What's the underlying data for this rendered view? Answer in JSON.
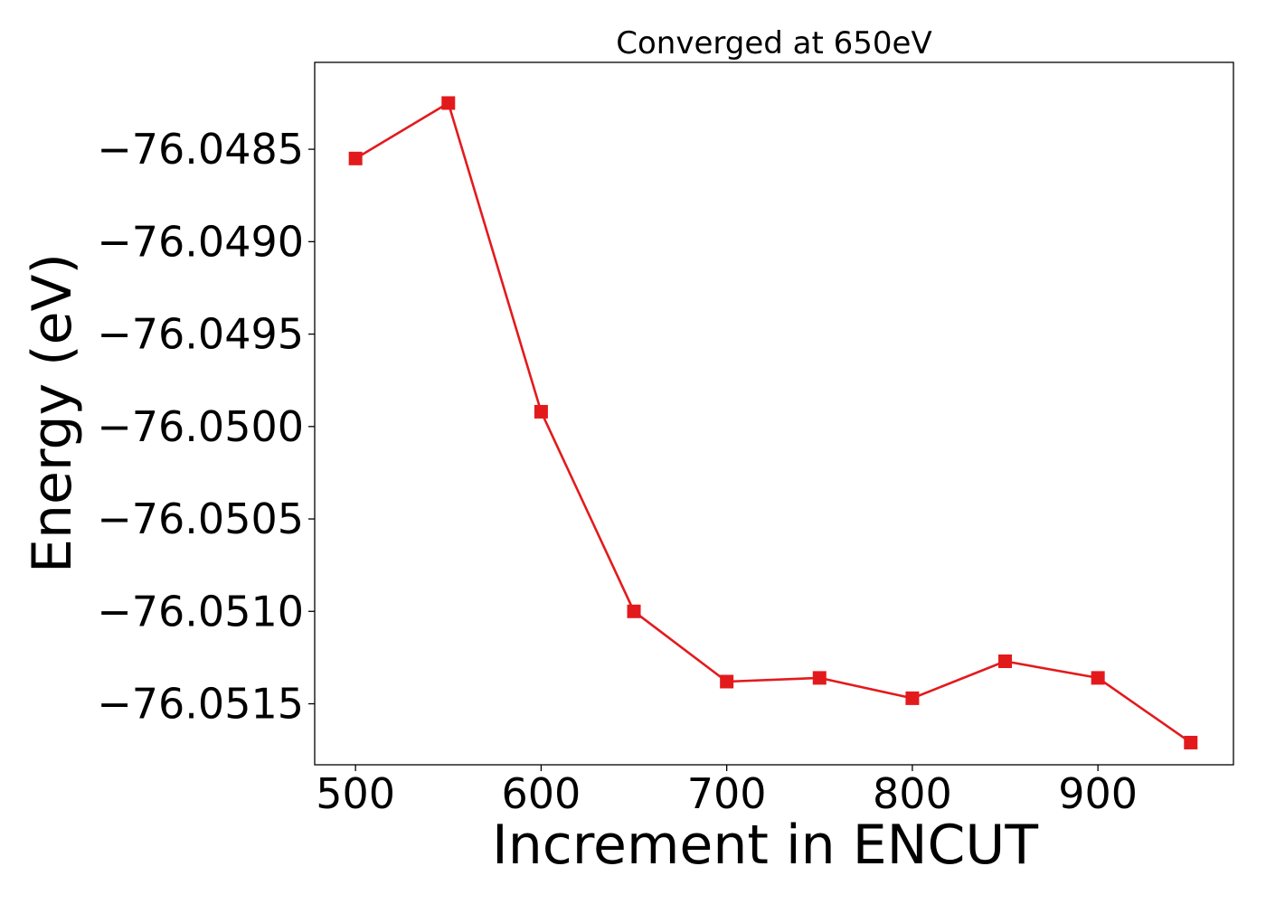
{
  "chart_data": {
    "type": "line",
    "title": "Converged at 650eV",
    "xlabel": "Increment in ENCUT",
    "ylabel": "Energy (eV)",
    "xlim": [
      478,
      973
    ],
    "ylim": [
      -76.05183,
      -76.04803
    ],
    "xticks": [
      500,
      600,
      700,
      800,
      900
    ],
    "xtick_labels": [
      "500",
      "600",
      "700",
      "800",
      "900"
    ],
    "yticks": [
      -76.0485,
      -76.049,
      -76.0495,
      -76.05,
      -76.0505,
      -76.051,
      -76.0515
    ],
    "ytick_labels": [
      "−76.0485",
      "−76.0490",
      "−76.0495",
      "−76.0500",
      "−76.0505",
      "−76.0510",
      "−76.0515"
    ],
    "grid": false,
    "series": [
      {
        "color": "#e31a1c",
        "marker": "square",
        "x": [
          500,
          550,
          600,
          650,
          700,
          750,
          800,
          850,
          900,
          950
        ],
        "y": [
          -76.04855,
          -76.04825,
          -76.04992,
          -76.051,
          -76.05138,
          -76.05136,
          -76.05147,
          -76.05127,
          -76.05136,
          -76.05171
        ]
      }
    ]
  }
}
